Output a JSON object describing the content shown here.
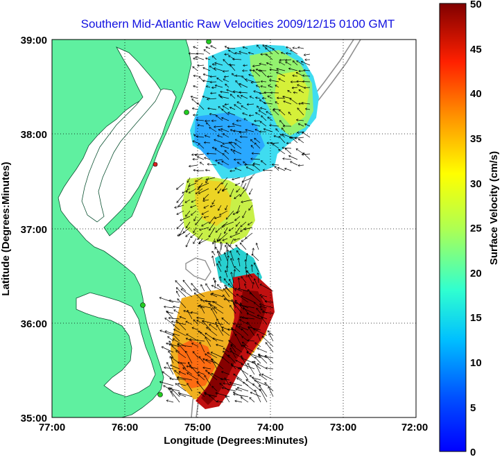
{
  "title": "Southern Mid-Atlantic Raw Velocities 2009/12/15 0100 GMT",
  "x_axis": {
    "label": "Longitude (Degrees:Minutes)",
    "ticks": [
      "77:00",
      "76:00",
      "75:00",
      "74:00",
      "73:00",
      "72:00"
    ]
  },
  "y_axis": {
    "label": "Latitude (Degrees:Minutes)",
    "ticks": [
      "39:00",
      "38:00",
      "37:00",
      "36:00",
      "35:00"
    ]
  },
  "colorbar": {
    "label": "Surface Velocity (cm/s)",
    "ticks": [
      "50",
      "45",
      "40",
      "35",
      "30",
      "25",
      "20",
      "15",
      "10",
      "5",
      "0"
    ],
    "range": [
      0,
      50
    ],
    "colormap": "jet"
  },
  "map_extent": {
    "lon": [
      -77,
      -72
    ],
    "lat": [
      35,
      39
    ]
  },
  "colors": {
    "land": "#5ff0a0",
    "water": "#ffffff",
    "title": "#1010e0",
    "grid": "#000000",
    "bathymetry": "#909090",
    "arrow": "#000000",
    "radar_site_active": "#22cc22",
    "radar_site_inactive": "#dd2222"
  }
}
